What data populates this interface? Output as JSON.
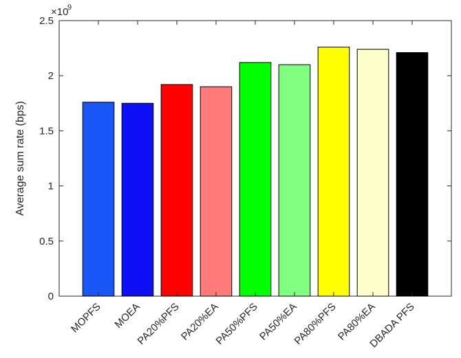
{
  "chart_data": {
    "type": "bar",
    "categories": [
      "MOPFS",
      "MOEA",
      "PA20%PFS",
      "PA20%EA",
      "PA50%PFS",
      "PA50%EA",
      "PA80%PFS",
      "PA80%EA",
      "DBADA PFS"
    ],
    "values": [
      1.76,
      1.75,
      1.92,
      1.9,
      2.12,
      2.1,
      2.26,
      2.24,
      2.21
    ],
    "bar_colors": [
      "#1a56f5",
      "#0f0ff5",
      "#ff0000",
      "#ff7a7a",
      "#00ff00",
      "#80ff80",
      "#ffff00",
      "#ffffcc",
      "#000000"
    ],
    "ylabel": "Average sum rate (bps)",
    "xlabel": "",
    "title": "",
    "ylim": [
      0,
      2.5
    ],
    "yticks": [
      0,
      0.5,
      1,
      1.5,
      2,
      2.5
    ],
    "ytick_labels": [
      "0",
      "0.5",
      "1",
      "1.5",
      "2",
      "2.5"
    ],
    "y_multiplier_base": "×10",
    "y_multiplier_exponent": "9",
    "grid": false,
    "legend": "none"
  }
}
